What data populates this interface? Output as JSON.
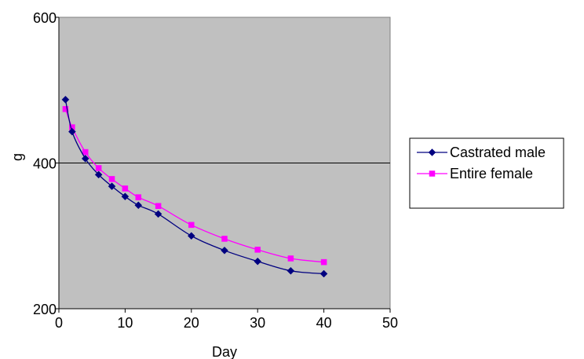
{
  "chart_data": {
    "type": "line",
    "title": "",
    "xlabel": "Day",
    "ylabel": "g",
    "xlim": [
      0,
      50
    ],
    "ylim": [
      200,
      600
    ],
    "x_ticks": [
      0,
      10,
      20,
      30,
      40,
      50
    ],
    "y_ticks": [
      200,
      400,
      600
    ],
    "x_tick_labels": [
      "0",
      "10",
      "20",
      "30",
      "40",
      "50"
    ],
    "y_tick_labels": [
      "200",
      "400",
      "600"
    ],
    "grid": "horizontal major gridlines",
    "plot_background": "#c0c0c0",
    "legend_position": "right",
    "series": [
      {
        "name": "Castrated male",
        "color": "#000080",
        "marker": "diamond",
        "x": [
          1,
          2,
          4,
          6,
          8,
          10,
          12,
          15,
          20,
          25,
          30,
          35,
          40
        ],
        "y": [
          487,
          443,
          406,
          384,
          368,
          354,
          342,
          330,
          300,
          280,
          265,
          252,
          248
        ]
      },
      {
        "name": "Entire female",
        "color": "#ff00ff",
        "marker": "square",
        "x": [
          1,
          2,
          4,
          6,
          8,
          10,
          12,
          15,
          20,
          25,
          30,
          35,
          40
        ],
        "y": [
          474,
          449,
          415,
          393,
          378,
          365,
          353,
          341,
          315,
          296,
          281,
          269,
          264
        ]
      }
    ]
  }
}
